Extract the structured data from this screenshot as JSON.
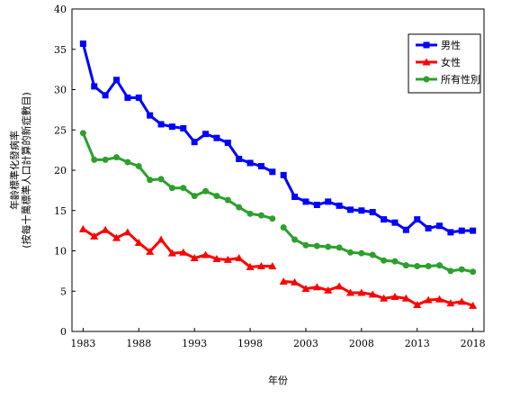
{
  "chart_data": {
    "type": "line",
    "xlabel": "年份",
    "ylabel": [
      "年齡標準化發病率",
      "(按每十萬標準人口計算的新症數目)"
    ],
    "ylim": [
      0,
      40
    ],
    "yticks": [
      0,
      5,
      10,
      15,
      20,
      25,
      30,
      35,
      40
    ],
    "xlim": [
      1982,
      2019
    ],
    "xticks": [
      1983,
      1988,
      1993,
      1998,
      2003,
      2008,
      2013,
      2018
    ],
    "grid": false,
    "legend_position": "top-right",
    "series": [
      {
        "name": "男性",
        "color": "#0000ff",
        "marker": "square",
        "segments": [
          {
            "x": [
              1983,
              1984,
              1985,
              1986,
              1987,
              1988,
              1989,
              1990,
              1991,
              1992,
              1993,
              1994,
              1995,
              1996,
              1997,
              1998,
              1999,
              2000
            ],
            "y": [
              35.7,
              30.4,
              29.3,
              31.2,
              29.0,
              29.0,
              26.8,
              25.7,
              25.4,
              25.2,
              23.5,
              24.5,
              24.0,
              23.4,
              21.4,
              20.9,
              20.5,
              19.8
            ]
          },
          {
            "x": [
              2001,
              2002,
              2003,
              2004,
              2005,
              2006,
              2007,
              2008,
              2009,
              2010,
              2011,
              2012,
              2013,
              2014,
              2015,
              2016,
              2017,
              2018
            ],
            "y": [
              19.4,
              16.7,
              16.1,
              15.7,
              16.1,
              15.6,
              15.1,
              15.0,
              14.8,
              13.9,
              13.5,
              12.6,
              13.9,
              12.8,
              13.1,
              12.3,
              12.5,
              12.5
            ]
          }
        ]
      },
      {
        "name": "女性",
        "color": "#ff0000",
        "marker": "triangle",
        "segments": [
          {
            "x": [
              1983,
              1984,
              1985,
              1986,
              1987,
              1988,
              1989,
              1990,
              1991,
              1992,
              1993,
              1994,
              1995,
              1996,
              1997,
              1998,
              1999,
              2000
            ],
            "y": [
              12.7,
              11.8,
              12.6,
              11.6,
              12.3,
              11.0,
              9.9,
              11.4,
              9.7,
              9.8,
              9.1,
              9.5,
              9.0,
              8.9,
              9.1,
              8.0,
              8.1,
              8.1
            ]
          },
          {
            "x": [
              2001,
              2002,
              2003,
              2004,
              2005,
              2006,
              2007,
              2008,
              2009,
              2010,
              2011,
              2012,
              2013,
              2014,
              2015,
              2016,
              2017,
              2018
            ],
            "y": [
              6.2,
              6.1,
              5.3,
              5.5,
              5.1,
              5.6,
              4.8,
              4.8,
              4.6,
              4.1,
              4.3,
              4.1,
              3.3,
              3.9,
              4.0,
              3.5,
              3.7,
              3.2
            ]
          }
        ]
      },
      {
        "name": "所有性別",
        "color": "#2ca02c",
        "marker": "circle",
        "segments": [
          {
            "x": [
              1983,
              1984,
              1985,
              1986,
              1987,
              1988,
              1989,
              1990,
              1991,
              1992,
              1993,
              1994,
              1995,
              1996,
              1997,
              1998,
              1999,
              2000
            ],
            "y": [
              24.6,
              21.3,
              21.3,
              21.6,
              21.0,
              20.5,
              18.8,
              18.9,
              17.8,
              17.8,
              16.8,
              17.4,
              16.8,
              16.3,
              15.4,
              14.6,
              14.4,
              14.0
            ]
          },
          {
            "x": [
              2001,
              2002,
              2003,
              2004,
              2005,
              2006,
              2007,
              2008,
              2009,
              2010,
              2011,
              2012,
              2013,
              2014,
              2015,
              2016,
              2017,
              2018
            ],
            "y": [
              12.9,
              11.4,
              10.7,
              10.6,
              10.5,
              10.4,
              9.8,
              9.7,
              9.5,
              8.8,
              8.7,
              8.2,
              8.1,
              8.1,
              8.2,
              7.5,
              7.7,
              7.4
            ]
          }
        ]
      }
    ]
  }
}
